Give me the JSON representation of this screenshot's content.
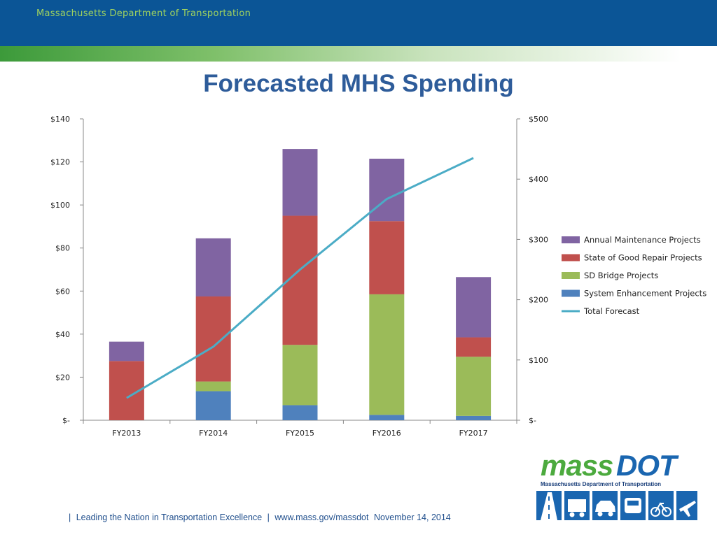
{
  "header": {
    "organization": "Massachusetts Department of Transportation"
  },
  "slide": {
    "title": "Forecasted MHS Spending"
  },
  "chart_data": {
    "type": "bar",
    "stacked": true,
    "categories": [
      "FY2013",
      "FY2014",
      "FY2015",
      "FY2016",
      "FY2017"
    ],
    "series": [
      {
        "name": "System Enhancement Projects",
        "axis": "left",
        "color": "#4f81bd",
        "values": [
          0,
          13.5,
          7,
          2.5,
          2
        ]
      },
      {
        "name": "SD Bridge Projects",
        "axis": "left",
        "color": "#9bbb59",
        "values": [
          0,
          4.5,
          28,
          56,
          27.5
        ]
      },
      {
        "name": "State of Good Repair Projects",
        "axis": "left",
        "color": "#c0504d",
        "values": [
          27.5,
          39.5,
          60,
          34,
          9
        ]
      },
      {
        "name": "Annual Maintenance Projects",
        "axis": "left",
        "color": "#8064a2",
        "values": [
          9,
          27,
          31,
          29,
          28
        ]
      },
      {
        "name": "Total Forecast",
        "type": "line",
        "axis": "right",
        "color": "#4bacc6",
        "values": [
          37,
          122,
          250,
          367,
          435
        ]
      }
    ],
    "y_axis": {
      "ticks": [
        "$-",
        "$20",
        "$40",
        "$60",
        "$80",
        "$100",
        "$120",
        "$140"
      ],
      "ylim": [
        0,
        140
      ]
    },
    "y2_axis": {
      "ticks": [
        "$-",
        "$100",
        "$200",
        "$300",
        "$400",
        "$500"
      ],
      "ylim": [
        0,
        500
      ]
    },
    "legend": {
      "position": "right",
      "entries": [
        "Annual Maintenance Projects",
        "State of Good Repair Projects",
        "SD Bridge Projects",
        "System Enhancement Projects",
        "Total Forecast"
      ]
    },
    "grid": false
  },
  "footer": {
    "sep1": "|",
    "tagline": "Leading the Nation in Transportation Excellence",
    "sep2": "|",
    "url": "www.mass.gov/massdot",
    "date": "November 14, 2014"
  },
  "logo": {
    "word1": "mass",
    "word2": "DOT",
    "subtitle": "Massachusetts Department of Transportation"
  }
}
